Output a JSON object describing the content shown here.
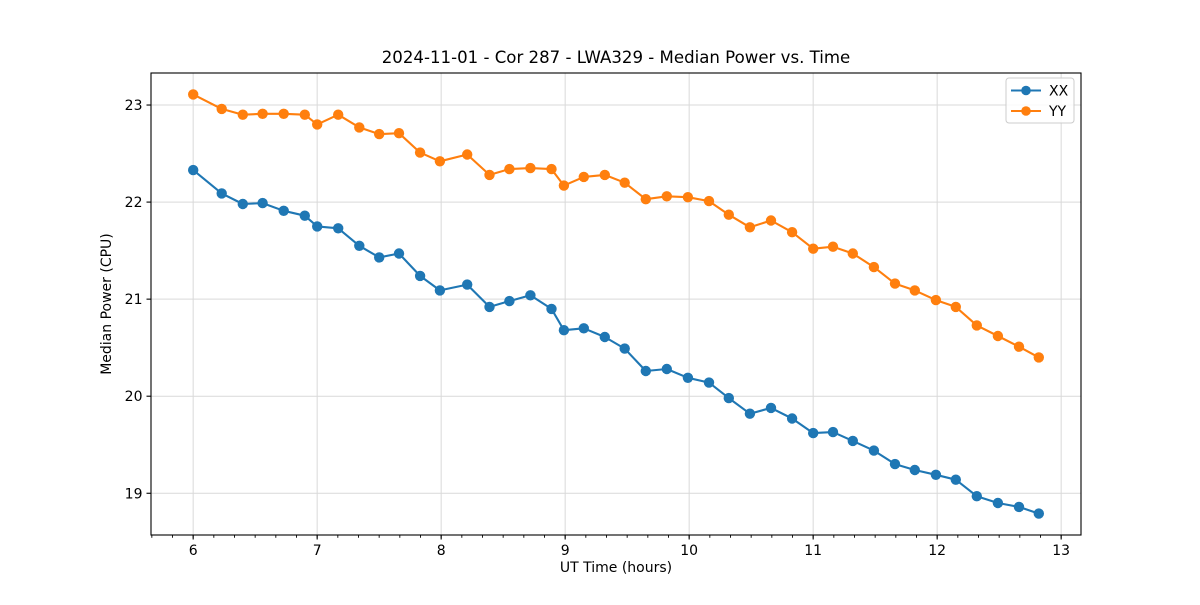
{
  "chart_data": {
    "type": "line",
    "title": "2024-11-01 - Cor 287 - LWA329 - Median Power vs. Time",
    "xlabel": "UT Time (hours)",
    "ylabel": "Median Power (CPU)",
    "xlim": [
      5.66,
      13.16
    ],
    "ylim": [
      18.57,
      23.33
    ],
    "x_ticks": [
      6,
      7,
      8,
      9,
      10,
      11,
      12,
      13
    ],
    "y_ticks": [
      19,
      20,
      21,
      22,
      23
    ],
    "x_minor_tick_step": 0.166667,
    "grid": true,
    "legend_position": "upper-right",
    "marker": "circle",
    "x": [
      6.0,
      6.23,
      6.4,
      6.56,
      6.73,
      6.9,
      7.0,
      7.17,
      7.34,
      7.5,
      7.66,
      7.83,
      7.99,
      8.21,
      8.39,
      8.55,
      8.72,
      8.89,
      8.99,
      9.15,
      9.32,
      9.48,
      9.65,
      9.82,
      9.99,
      10.16,
      10.32,
      10.49,
      10.66,
      10.83,
      11.0,
      11.16,
      11.32,
      11.49,
      11.66,
      11.82,
      11.99,
      12.15,
      12.32,
      12.49,
      12.66,
      12.82
    ],
    "series": [
      {
        "name": "XX",
        "color": "#1f77b4",
        "values": [
          22.33,
          22.09,
          21.98,
          21.99,
          21.91,
          21.86,
          21.75,
          21.73,
          21.55,
          21.43,
          21.47,
          21.24,
          21.09,
          21.15,
          20.92,
          20.98,
          21.04,
          20.9,
          20.68,
          20.7,
          20.61,
          20.49,
          20.26,
          20.28,
          20.19,
          20.14,
          19.98,
          19.82,
          19.88,
          19.77,
          19.62,
          19.63,
          19.54,
          19.44,
          19.3,
          19.24,
          19.19,
          19.14,
          18.97,
          18.9,
          18.86,
          18.79
        ]
      },
      {
        "name": "YY",
        "color": "#ff7f0e",
        "values": [
          23.11,
          22.96,
          22.9,
          22.91,
          22.91,
          22.9,
          22.8,
          22.9,
          22.77,
          22.7,
          22.71,
          22.51,
          22.42,
          22.49,
          22.28,
          22.34,
          22.35,
          22.34,
          22.17,
          22.26,
          22.28,
          22.2,
          22.03,
          22.06,
          22.05,
          22.01,
          21.87,
          21.74,
          21.81,
          21.69,
          21.52,
          21.54,
          21.47,
          21.33,
          21.16,
          21.09,
          20.99,
          20.92,
          20.73,
          20.62,
          20.51,
          20.4
        ]
      }
    ]
  }
}
